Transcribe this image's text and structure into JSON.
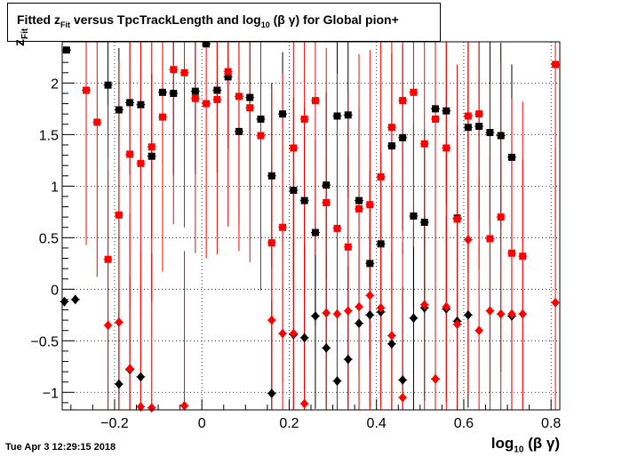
{
  "title": {
    "prefix": "Fitted  z",
    "sub1": "Fit",
    "middle": "  versus TpcTrackLength and log",
    "sub2": "10",
    "suffix": " (β γ) for Global pion+"
  },
  "timestamp": "Tue Apr  3 12:29:15 2018",
  "colors": {
    "black_series": "#000000",
    "red_series": "#ff0000",
    "grid": "#000000",
    "frame": "#000000"
  },
  "chart_data": {
    "type": "scatter",
    "xlabel": {
      "main": "log",
      "sub": "10",
      "tail": " (β γ)"
    },
    "ylabel": {
      "main": "z",
      "sub": "Fit"
    },
    "xlim": [
      -0.32,
      0.82
    ],
    "ylim": [
      -1.17,
      2.4
    ],
    "xticks": [
      -0.2,
      0,
      0.2,
      0.4,
      0.6,
      0.8
    ],
    "xtick_labels": [
      "−0.2",
      "0",
      "0.2",
      "0.4",
      "0.6",
      "0.8"
    ],
    "yticks": [
      -1,
      -0.5,
      0,
      0.5,
      1,
      1.5,
      2
    ],
    "ytick_labels": [
      "−1",
      "−0.5",
      "0",
      "0.5",
      "1",
      "1.5",
      "2"
    ],
    "grid": true,
    "series": [
      {
        "marker": "square",
        "color": "#000000",
        "points": [
          [
            -0.31,
            2.32,
            0,
            0
          ],
          [
            -0.215,
            1.98,
            0.7,
            0.7
          ],
          [
            -0.19,
            1.74,
            0.6,
            0.6
          ],
          [
            -0.165,
            1.81,
            0.7,
            0.7
          ],
          [
            -0.14,
            1.79,
            0.8,
            0.8
          ],
          [
            -0.115,
            1.29,
            0.8,
            0.8
          ],
          [
            -0.09,
            1.91,
            0.7,
            0.7
          ],
          [
            -0.065,
            1.9,
            0.8,
            0.8
          ],
          [
            -0.015,
            1.92,
            0.8,
            0.8
          ],
          [
            0.01,
            2.38,
            0,
            0
          ],
          [
            0.035,
            1.93,
            0.8,
            0.8
          ],
          [
            0.06,
            2.06,
            0.7,
            0.7
          ],
          [
            0.085,
            1.53,
            0.9,
            0.9
          ],
          [
            0.11,
            1.86,
            0.9,
            0.9
          ],
          [
            0.135,
            1.65,
            0.8,
            0.8
          ],
          [
            0.16,
            1.1,
            0.9,
            0.9
          ],
          [
            0.185,
            1.7,
            0.6,
            0.6
          ],
          [
            0.21,
            0.96,
            0.9,
            0.9
          ],
          [
            0.235,
            0.86,
            0.9,
            0.9
          ],
          [
            0.26,
            0.55,
            0.9,
            0.9
          ],
          [
            0.285,
            1.01,
            0.9,
            0.9
          ],
          [
            0.31,
            1.68,
            0.8,
            0.8
          ],
          [
            0.335,
            1.69,
            0.8,
            0.8
          ],
          [
            0.36,
            0.86,
            0.9,
            0.9
          ],
          [
            0.385,
            0.25,
            0.9,
            0.9
          ],
          [
            0.41,
            0.44,
            0.9,
            0.9
          ],
          [
            0.435,
            1.39,
            0.9,
            0.9
          ],
          [
            0.46,
            1.47,
            0.9,
            0.9
          ],
          [
            0.485,
            0.71,
            0.9,
            0.9
          ],
          [
            0.51,
            0.65,
            0.9,
            0.9
          ],
          [
            0.535,
            1.75,
            0.8,
            0.8
          ],
          [
            0.56,
            1.73,
            0.9,
            0.9
          ],
          [
            0.585,
            0.69,
            0.9,
            0.9
          ],
          [
            0.61,
            1.57,
            0.9,
            0.9
          ],
          [
            0.635,
            1.58,
            0.9,
            0.9
          ],
          [
            0.66,
            1.52,
            0.9,
            0.9
          ],
          [
            0.685,
            1.49,
            0.9,
            0.9
          ],
          [
            0.71,
            1.28,
            0.9,
            0.9
          ]
        ]
      },
      {
        "marker": "diamond",
        "color": "#000000",
        "points": [
          [
            -0.315,
            -0.12,
            0,
            0
          ],
          [
            -0.29,
            -0.1,
            0,
            0
          ],
          [
            -0.19,
            -0.92,
            0.9,
            0.9
          ],
          [
            -0.165,
            -0.78,
            0.9,
            0.9
          ],
          [
            -0.14,
            -0.85,
            0.9,
            0.9
          ],
          [
            0.16,
            -1.01,
            0.9,
            0.9
          ],
          [
            0.21,
            -0.44,
            0.9,
            0.9
          ],
          [
            0.235,
            -0.47,
            0.9,
            0.9
          ],
          [
            0.26,
            -0.26,
            0.9,
            0.9
          ],
          [
            0.285,
            -0.57,
            0.9,
            0.9
          ],
          [
            0.31,
            -0.89,
            0.9,
            0.9
          ],
          [
            0.335,
            -0.68,
            0.9,
            0.9
          ],
          [
            0.36,
            -0.33,
            0.9,
            0.9
          ],
          [
            0.385,
            -0.25,
            0.9,
            0.9
          ],
          [
            0.41,
            -0.22,
            0.9,
            0.9
          ],
          [
            0.435,
            -0.53,
            0.9,
            0.9
          ],
          [
            0.46,
            -0.88,
            0.9,
            0.9
          ],
          [
            0.485,
            -0.28,
            0.9,
            0.9
          ],
          [
            0.51,
            -0.18,
            0.9,
            0.9
          ],
          [
            0.535,
            -0.87,
            0.9,
            0.9
          ],
          [
            0.56,
            -0.19,
            0.9,
            0.9
          ],
          [
            0.585,
            -0.31,
            0.9,
            0.9
          ],
          [
            0.61,
            -0.25,
            0.9,
            0.9
          ],
          [
            0.71,
            -0.26,
            0.9,
            0.9
          ]
        ]
      },
      {
        "marker": "square",
        "color": "#ff0000",
        "points": [
          [
            -0.265,
            1.93,
            1.5,
            1.5
          ],
          [
            -0.24,
            1.62,
            1.5,
            1.5
          ],
          [
            -0.215,
            0.29,
            1.5,
            1.5
          ],
          [
            -0.19,
            0.72,
            1.5,
            1.5
          ],
          [
            -0.165,
            1.31,
            1.5,
            1.5
          ],
          [
            -0.14,
            1.22,
            1.5,
            1.5
          ],
          [
            -0.115,
            1.38,
            1.5,
            1.5
          ],
          [
            -0.09,
            1.67,
            1.5,
            1.5
          ],
          [
            -0.065,
            2.13,
            1.5,
            1.5
          ],
          [
            -0.04,
            2.1,
            1.5,
            1.5
          ],
          [
            -0.015,
            1.85,
            1.5,
            1.5
          ],
          [
            0.01,
            1.8,
            1.5,
            1.5
          ],
          [
            0.035,
            1.84,
            1.5,
            1.5
          ],
          [
            0.06,
            2.11,
            1.5,
            1.5
          ],
          [
            0.085,
            1.87,
            1.5,
            1.5
          ],
          [
            0.11,
            1.76,
            1.5,
            1.5
          ],
          [
            0.135,
            1.49,
            1.5,
            1.5
          ],
          [
            0.16,
            0.45,
            1.5,
            1.5
          ],
          [
            0.185,
            0.6,
            1.5,
            1.5
          ],
          [
            0.21,
            1.37,
            1.5,
            1.5
          ],
          [
            0.235,
            1.65,
            1.5,
            1.5
          ],
          [
            0.26,
            1.83,
            1.5,
            1.5
          ],
          [
            0.285,
            0.84,
            1.5,
            1.5
          ],
          [
            0.31,
            0.59,
            1.5,
            1.5
          ],
          [
            0.335,
            0.41,
            1.5,
            1.5
          ],
          [
            0.36,
            0.78,
            1.5,
            1.5
          ],
          [
            0.385,
            0.82,
            1.5,
            1.5
          ],
          [
            0.41,
            1.09,
            1.5,
            1.5
          ],
          [
            0.435,
            1.57,
            1.5,
            1.5
          ],
          [
            0.46,
            1.83,
            1.5,
            1.5
          ],
          [
            0.485,
            1.91,
            1.5,
            1.5
          ],
          [
            0.51,
            1.41,
            1.5,
            1.5
          ],
          [
            0.535,
            1.65,
            1.5,
            1.5
          ],
          [
            0.56,
            1.37,
            1.5,
            1.5
          ],
          [
            0.585,
            0.68,
            1.5,
            1.5
          ],
          [
            0.61,
            1.68,
            1.5,
            1.5
          ],
          [
            0.635,
            1.7,
            1.5,
            1.5
          ],
          [
            0.66,
            0.49,
            1.5,
            1.5
          ],
          [
            0.685,
            0.7,
            1.5,
            1.5
          ],
          [
            0.71,
            0.35,
            1.5,
            1.5
          ],
          [
            0.735,
            0.32,
            1.5,
            1.5
          ],
          [
            0.81,
            2.18,
            1.5,
            1.5
          ]
        ]
      },
      {
        "marker": "diamond",
        "color": "#ff0000",
        "points": [
          [
            -0.215,
            -0.35,
            1.5,
            1.5
          ],
          [
            -0.19,
            -0.32,
            1.5,
            1.5
          ],
          [
            -0.165,
            -0.77,
            1.5,
            1.5
          ],
          [
            -0.14,
            -1.14,
            1.5,
            1.5
          ],
          [
            -0.115,
            -1.15,
            1.5,
            1.5
          ],
          [
            -0.04,
            -1.13,
            1.5,
            1.5
          ],
          [
            0.16,
            -0.3,
            1.5,
            1.5
          ],
          [
            0.185,
            -0.43,
            1.5,
            1.5
          ],
          [
            0.21,
            -0.43,
            1.5,
            1.5
          ],
          [
            0.235,
            -1.11,
            1.5,
            1.5
          ],
          [
            0.285,
            -0.23,
            1.5,
            1.5
          ],
          [
            0.31,
            -0.24,
            1.5,
            1.5
          ],
          [
            0.335,
            -0.21,
            1.5,
            1.5
          ],
          [
            0.36,
            -0.17,
            1.5,
            1.5
          ],
          [
            0.385,
            -0.06,
            1.5,
            1.5
          ],
          [
            0.41,
            -0.18,
            1.5,
            1.5
          ],
          [
            0.435,
            -0.45,
            1.5,
            1.5
          ],
          [
            0.46,
            -1.05,
            1.5,
            1.5
          ],
          [
            0.51,
            -0.15,
            1.5,
            1.5
          ],
          [
            0.535,
            -0.87,
            1.5,
            1.5
          ],
          [
            0.56,
            -0.17,
            1.5,
            1.5
          ],
          [
            0.585,
            -0.34,
            1.5,
            1.5
          ],
          [
            0.61,
            0.48,
            1.5,
            1.5
          ],
          [
            0.635,
            -0.4,
            1.5,
            1.5
          ],
          [
            0.66,
            -0.21,
            1.5,
            1.5
          ],
          [
            0.685,
            -0.24,
            1.5,
            1.5
          ],
          [
            0.71,
            -0.24,
            1.5,
            1.5
          ],
          [
            0.735,
            -0.24,
            1.5,
            1.5
          ],
          [
            0.81,
            -0.13,
            1.5,
            1.5
          ]
        ]
      }
    ]
  }
}
